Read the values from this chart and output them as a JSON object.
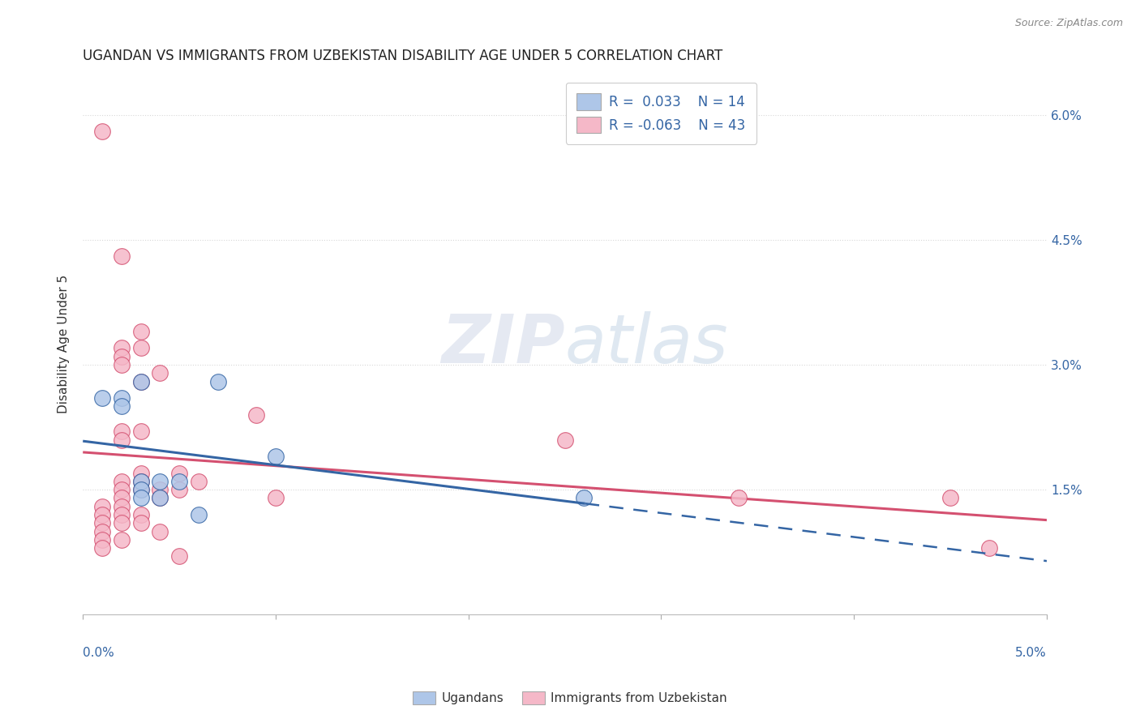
{
  "title": "UGANDAN VS IMMIGRANTS FROM UZBEKISTAN DISABILITY AGE UNDER 5 CORRELATION CHART",
  "source": "Source: ZipAtlas.com",
  "ylabel": "Disability Age Under 5",
  "xlim": [
    0.0,
    0.05
  ],
  "ylim": [
    0.0,
    0.065
  ],
  "background_color": "#ffffff",
  "grid_color": "#d8d8d8",
  "ugandan_color": "#aec6e8",
  "uzbek_color": "#f5b8c8",
  "ugandan_line_color": "#3465a4",
  "uzbek_line_color": "#d45070",
  "ugandan_points": [
    [
      0.001,
      0.026
    ],
    [
      0.002,
      0.026
    ],
    [
      0.002,
      0.025
    ],
    [
      0.003,
      0.028
    ],
    [
      0.003,
      0.016
    ],
    [
      0.003,
      0.015
    ],
    [
      0.003,
      0.014
    ],
    [
      0.004,
      0.016
    ],
    [
      0.004,
      0.014
    ],
    [
      0.005,
      0.016
    ],
    [
      0.006,
      0.012
    ],
    [
      0.007,
      0.028
    ],
    [
      0.01,
      0.019
    ],
    [
      0.026,
      0.014
    ]
  ],
  "uzbek_points": [
    [
      0.001,
      0.058
    ],
    [
      0.001,
      0.013
    ],
    [
      0.001,
      0.012
    ],
    [
      0.001,
      0.011
    ],
    [
      0.001,
      0.01
    ],
    [
      0.001,
      0.009
    ],
    [
      0.001,
      0.008
    ],
    [
      0.002,
      0.043
    ],
    [
      0.002,
      0.032
    ],
    [
      0.002,
      0.031
    ],
    [
      0.002,
      0.03
    ],
    [
      0.002,
      0.022
    ],
    [
      0.002,
      0.021
    ],
    [
      0.002,
      0.016
    ],
    [
      0.002,
      0.015
    ],
    [
      0.002,
      0.014
    ],
    [
      0.002,
      0.013
    ],
    [
      0.002,
      0.012
    ],
    [
      0.002,
      0.011
    ],
    [
      0.002,
      0.009
    ],
    [
      0.003,
      0.034
    ],
    [
      0.003,
      0.032
    ],
    [
      0.003,
      0.028
    ],
    [
      0.003,
      0.022
    ],
    [
      0.003,
      0.017
    ],
    [
      0.003,
      0.016
    ],
    [
      0.003,
      0.015
    ],
    [
      0.003,
      0.012
    ],
    [
      0.003,
      0.011
    ],
    [
      0.004,
      0.029
    ],
    [
      0.004,
      0.015
    ],
    [
      0.004,
      0.014
    ],
    [
      0.004,
      0.01
    ],
    [
      0.005,
      0.017
    ],
    [
      0.005,
      0.015
    ],
    [
      0.005,
      0.007
    ],
    [
      0.006,
      0.016
    ],
    [
      0.009,
      0.024
    ],
    [
      0.01,
      0.014
    ],
    [
      0.025,
      0.021
    ],
    [
      0.034,
      0.014
    ],
    [
      0.045,
      0.014
    ],
    [
      0.047,
      0.008
    ]
  ],
  "yticks": [
    0.015,
    0.03,
    0.045,
    0.06
  ],
  "ytick_labels": [
    "1.5%",
    "3.0%",
    "4.5%",
    "6.0%"
  ],
  "title_fontsize": 12,
  "source_fontsize": 9,
  "axis_label_fontsize": 11,
  "tick_fontsize": 11,
  "legend_fontsize": 12
}
